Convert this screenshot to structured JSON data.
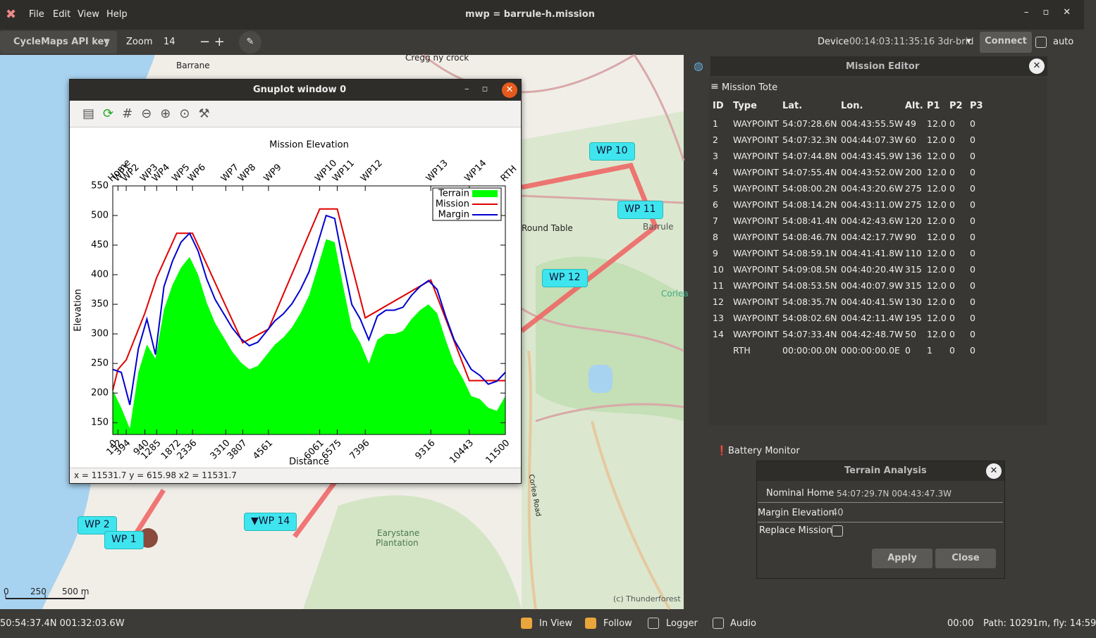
{
  "window": {
    "title": "mwp = barrule-h.mission",
    "menu": [
      "File",
      "Edit",
      "View",
      "Help"
    ]
  },
  "toolbar": {
    "api_key": "CycleMaps API key",
    "zoom_label": "Zoom",
    "zoom_value": "14",
    "device_label": "Device",
    "device_value": "00:14:03:11:35:16 3dr-brid",
    "connect": "Connect",
    "auto": "auto"
  },
  "map": {
    "labels": [
      "Barrane",
      "Cregg ny crock",
      "Round Table",
      "Barrule",
      "Corlea",
      "Earystane",
      "Plantation",
      "Corlea Road",
      "(c) Thunderforest"
    ],
    "scale": [
      "0",
      "250",
      "500 m"
    ],
    "waypoints": [
      "WP 10",
      "WP 11",
      "WP 12",
      "▼WP 14",
      "WP 2",
      "WP 1"
    ]
  },
  "gnuplot": {
    "title": "Gnuplot window 0",
    "status": "x = 11531.7 y = 615.98 x2 = 11531.7"
  },
  "chart_data": {
    "type": "line",
    "title": "Mission Elevation",
    "xlabel": "Distance",
    "ylabel": "Elevation",
    "xlim": [
      0,
      11500
    ],
    "ylim": [
      130,
      550
    ],
    "xticks": [
      0,
      152,
      394,
      940,
      1285,
      1872,
      2336,
      3310,
      3807,
      4561,
      6061,
      6575,
      7396,
      9316,
      10443,
      11500
    ],
    "x2ticks": [
      {
        "value": 0,
        "label": "Home"
      },
      {
        "value": 152,
        "label": "WP1"
      },
      {
        "value": 394,
        "label": "WP2"
      },
      {
        "value": 940,
        "label": "WP3"
      },
      {
        "value": 1285,
        "label": "WP4"
      },
      {
        "value": 1872,
        "label": "WP5"
      },
      {
        "value": 2336,
        "label": "WP6"
      },
      {
        "value": 3310,
        "label": "WP7"
      },
      {
        "value": 3807,
        "label": "WP8"
      },
      {
        "value": 4561,
        "label": "WP9"
      },
      {
        "value": 6061,
        "label": "WP10"
      },
      {
        "value": 6575,
        "label": "WP11"
      },
      {
        "value": 7396,
        "label": "WP12"
      },
      {
        "value": 9316,
        "label": "WP13"
      },
      {
        "value": 10443,
        "label": "WP14"
      },
      {
        "value": 11500,
        "label": "RTH"
      }
    ],
    "yticks": [
      150,
      200,
      250,
      300,
      350,
      400,
      450,
      500,
      550
    ],
    "legend": "top-right",
    "series": [
      {
        "name": "Terrain",
        "color": "#00ff00",
        "fill": true,
        "x": [
          0,
          250,
          500,
          750,
          1000,
          1250,
          1500,
          1750,
          2000,
          2250,
          2500,
          2750,
          3000,
          3250,
          3500,
          3750,
          4000,
          4250,
          4500,
          4750,
          5000,
          5250,
          5500,
          5750,
          6000,
          6250,
          6500,
          6750,
          7000,
          7250,
          7500,
          7750,
          8000,
          8250,
          8500,
          8750,
          9000,
          9250,
          9500,
          9750,
          10000,
          10250,
          10500,
          10750,
          11000,
          11250,
          11500
        ],
        "values": [
          205,
          175,
          140,
          235,
          282,
          258,
          341,
          383,
          412,
          430,
          400,
          353,
          318,
          294,
          270,
          252,
          240,
          246,
          264,
          282,
          294,
          311,
          335,
          365,
          412,
          460,
          455,
          380,
          310,
          285,
          250,
          290,
          300,
          300,
          305,
          325,
          340,
          350,
          335,
          290,
          250,
          225,
          195,
          190,
          175,
          170,
          195
        ]
      },
      {
        "name": "Mission",
        "color": "#e00000",
        "x": [
          0,
          152,
          394,
          940,
          1285,
          1872,
          2336,
          3310,
          3807,
          4561,
          6061,
          6575,
          7396,
          9316,
          10443,
          11500
        ],
        "values": [
          205,
          240,
          256,
          335,
          395,
          470,
          470,
          347,
          285,
          308,
          511,
          511,
          327,
          391,
          221,
          221
        ]
      },
      {
        "name": "Margin",
        "color": "#0000d0",
        "x": [
          0,
          250,
          500,
          750,
          1000,
          1250,
          1500,
          1750,
          2000,
          2250,
          2500,
          2750,
          3000,
          3250,
          3500,
          3750,
          4000,
          4250,
          4500,
          4750,
          5000,
          5250,
          5500,
          5750,
          6000,
          6250,
          6500,
          6750,
          7000,
          7250,
          7500,
          7750,
          8000,
          8250,
          8500,
          8750,
          9000,
          9250,
          9500,
          9750,
          10000,
          10250,
          10500,
          10750,
          11000,
          11250,
          11500
        ],
        "values": [
          240,
          235,
          180,
          275,
          325,
          265,
          380,
          423,
          455,
          470,
          440,
          393,
          358,
          334,
          310,
          292,
          280,
          286,
          304,
          322,
          334,
          351,
          375,
          405,
          452,
          500,
          495,
          420,
          350,
          325,
          290,
          330,
          340,
          340,
          345,
          365,
          380,
          390,
          375,
          330,
          290,
          265,
          240,
          230,
          215,
          220,
          235
        ]
      }
    ]
  },
  "mission_editor": {
    "title": "Mission Editor",
    "tote": "Mission Tote",
    "columns": [
      "ID",
      "Type",
      "Lat.",
      "Lon.",
      "Alt.",
      "P1",
      "P2",
      "P3"
    ],
    "rows": [
      [
        "1",
        "WAYPOINT",
        "54:07:28.6N",
        "004:43:55.5W",
        "49",
        "12.0",
        "0",
        "0"
      ],
      [
        "2",
        "WAYPOINT",
        "54:07:32.3N",
        "004:44:07.3W",
        "60",
        "12.0",
        "0",
        "0"
      ],
      [
        "3",
        "WAYPOINT",
        "54:07:44.8N",
        "004:43:45.9W",
        "136",
        "12.0",
        "0",
        "0"
      ],
      [
        "4",
        "WAYPOINT",
        "54:07:55.4N",
        "004:43:52.0W",
        "200",
        "12.0",
        "0",
        "0"
      ],
      [
        "5",
        "WAYPOINT",
        "54:08:00.2N",
        "004:43:20.6W",
        "275",
        "12.0",
        "0",
        "0"
      ],
      [
        "6",
        "WAYPOINT",
        "54:08:14.2N",
        "004:43:11.0W",
        "275",
        "12.0",
        "0",
        "0"
      ],
      [
        "7",
        "WAYPOINT",
        "54:08:41.4N",
        "004:42:43.6W",
        "120",
        "12.0",
        "0",
        "0"
      ],
      [
        "8",
        "WAYPOINT",
        "54:08:46.7N",
        "004:42:17.7W",
        "90",
        "12.0",
        "0",
        "0"
      ],
      [
        "9",
        "WAYPOINT",
        "54:08:59.1N",
        "004:41:41.8W",
        "110",
        "12.0",
        "0",
        "0"
      ],
      [
        "10",
        "WAYPOINT",
        "54:09:08.5N",
        "004:40:20.4W",
        "315",
        "12.0",
        "0",
        "0"
      ],
      [
        "11",
        "WAYPOINT",
        "54:08:53.5N",
        "004:40:07.9W",
        "315",
        "12.0",
        "0",
        "0"
      ],
      [
        "12",
        "WAYPOINT",
        "54:08:35.7N",
        "004:40:41.5W",
        "130",
        "12.0",
        "0",
        "0"
      ],
      [
        "13",
        "WAYPOINT",
        "54:08:02.6N",
        "004:42:11.4W",
        "195",
        "12.0",
        "0",
        "0"
      ],
      [
        "14",
        "WAYPOINT",
        "54:07:33.4N",
        "004:42:48.7W",
        "50",
        "12.0",
        "0",
        "0"
      ],
      [
        null,
        "RTH",
        "00:00:00.0N",
        "000:00:00.0E",
        "0",
        "1",
        "0",
        "0"
      ]
    ]
  },
  "battery": {
    "title": "Battery Monitor"
  },
  "terrain_dialog": {
    "title": "Terrain Analysis",
    "home_label": "Nominal Home",
    "home_value": "54:07:29.7N 004:43:47.3W",
    "margin_label": "Margin Elevation",
    "margin_value": "40",
    "replace_label": "Replace Mission",
    "apply": "Apply",
    "close": "Close"
  },
  "statusbar": {
    "position": "50:54:37.4N 001:32:03.6W",
    "checks": [
      "In View",
      "Follow",
      "Logger",
      "Audio"
    ],
    "time": "00:00",
    "path": "Path: 10291m, fly: 14:59"
  }
}
